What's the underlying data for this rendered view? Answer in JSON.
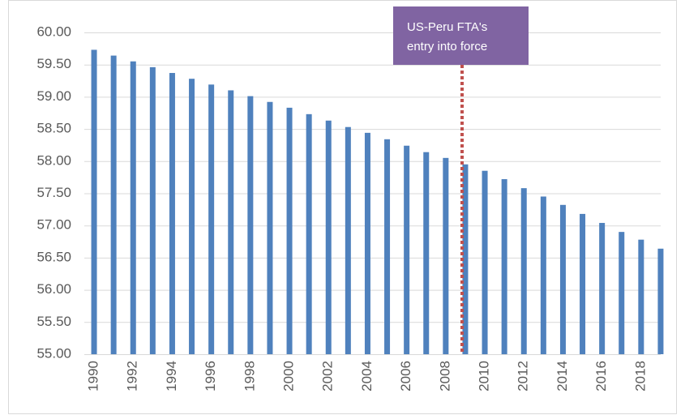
{
  "chart_data": {
    "type": "bar",
    "categories": [
      "1990",
      null,
      "1992",
      null,
      "1994",
      null,
      "1996",
      null,
      "1998",
      null,
      "2000",
      null,
      "2002",
      null,
      "2004",
      null,
      "2006",
      null,
      "2008",
      null,
      "2010",
      null,
      "2012",
      null,
      "2014",
      null,
      "2016",
      null,
      "2018",
      null
    ],
    "values": [
      59.73,
      59.64,
      59.55,
      59.46,
      59.37,
      59.28,
      59.19,
      59.1,
      59.01,
      58.92,
      58.83,
      58.73,
      58.63,
      58.53,
      58.44,
      58.34,
      58.24,
      58.14,
      58.05,
      57.95,
      57.85,
      57.72,
      57.58,
      57.45,
      57.32,
      57.18,
      57.04,
      56.9,
      56.78,
      56.64
    ],
    "color": "#4f81bd",
    "ylim": [
      55,
      60
    ],
    "yticks": [
      {
        "value": 55,
        "label": "55.00"
      },
      {
        "value": 55.5,
        "label": "55.50"
      },
      {
        "value": 56,
        "label": "56.00"
      },
      {
        "value": 56.5,
        "label": "56.50"
      },
      {
        "value": 57,
        "label": "57.00"
      },
      {
        "value": 57.5,
        "label": "57.50"
      },
      {
        "value": 58,
        "label": "58.00"
      },
      {
        "value": 58.5,
        "label": "58.50"
      },
      {
        "value": 59,
        "label": "59.00"
      },
      {
        "value": 59.5,
        "label": "59.50"
      },
      {
        "value": 60,
        "label": "60.00"
      }
    ],
    "grid": true,
    "annotation": [
      "US-Peru FTA's",
      "entry into force"
    ]
  }
}
